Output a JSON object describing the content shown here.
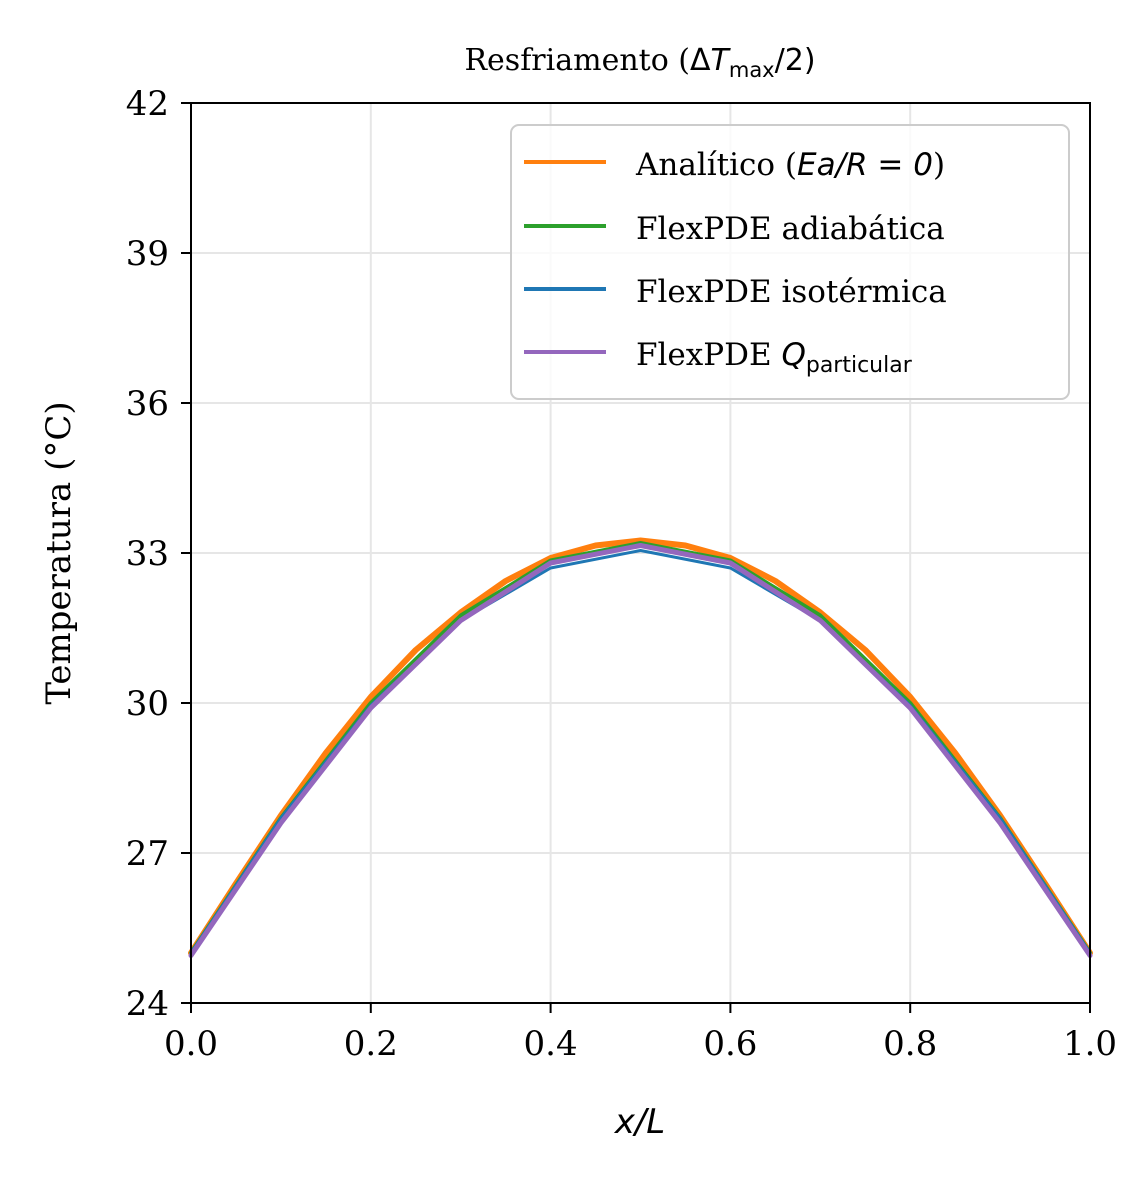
{
  "chart_data": {
    "type": "line",
    "title": "Resfriamento (ΔTmax/2)",
    "title_parts": {
      "prefix": "Resfriamento (",
      "delta": "Δ",
      "T": "T",
      "sub": "max",
      "suffix": "/2)"
    },
    "xlabel": "x/L",
    "ylabel": "Temperatura (°C)",
    "xlim": [
      0.0,
      1.0
    ],
    "ylim": [
      24,
      42
    ],
    "xticks": [
      "0.0",
      "0.2",
      "0.4",
      "0.6",
      "0.8",
      "1.0"
    ],
    "yticks": [
      "24",
      "27",
      "30",
      "33",
      "36",
      "39",
      "42"
    ],
    "grid": true,
    "legend_position": "top-right",
    "x": [
      0.0,
      0.1,
      0.2,
      0.3,
      0.4,
      0.5,
      0.6,
      0.7,
      0.8,
      0.9,
      1.0
    ],
    "series": [
      {
        "name": "Analítico (Ea/R = 0)",
        "legend_parts": {
          "prefix": "Analítico (",
          "math": "Ea/R = 0",
          "suffix": ")"
        },
        "color": "#ff7f0e",
        "x": [
          0.0,
          0.05,
          0.1,
          0.15,
          0.2,
          0.25,
          0.3,
          0.35,
          0.4,
          0.45,
          0.5,
          0.55,
          0.6,
          0.65,
          0.7,
          0.75,
          0.8,
          0.85,
          0.9,
          0.95,
          1.0
        ],
        "values": [
          25.0,
          26.39,
          27.75,
          29.0,
          30.12,
          31.06,
          31.81,
          32.44,
          32.9,
          33.15,
          33.25,
          33.15,
          32.9,
          32.44,
          31.81,
          31.06,
          30.12,
          29.0,
          27.75,
          26.39,
          25.0
        ]
      },
      {
        "name": "FlexPDE adiabática",
        "color": "#2ca02c",
        "values": [
          25.0,
          27.7,
          30.0,
          31.75,
          32.85,
          33.2,
          32.85,
          31.75,
          30.0,
          27.7,
          25.0
        ]
      },
      {
        "name": "FlexPDE isotérmica",
        "color": "#1f77b4",
        "values": [
          25.0,
          27.7,
          29.95,
          31.65,
          32.7,
          33.05,
          32.7,
          31.65,
          29.95,
          27.7,
          25.0
        ]
      },
      {
        "name": "FlexPDE Qparticular",
        "legend_parts": {
          "prefix": "FlexPDE ",
          "Q": "Q",
          "sub": "particular"
        },
        "color": "#9467bd",
        "values": [
          24.95,
          27.6,
          29.9,
          31.65,
          32.8,
          33.15,
          32.8,
          31.65,
          29.9,
          27.6,
          24.95
        ]
      }
    ]
  }
}
